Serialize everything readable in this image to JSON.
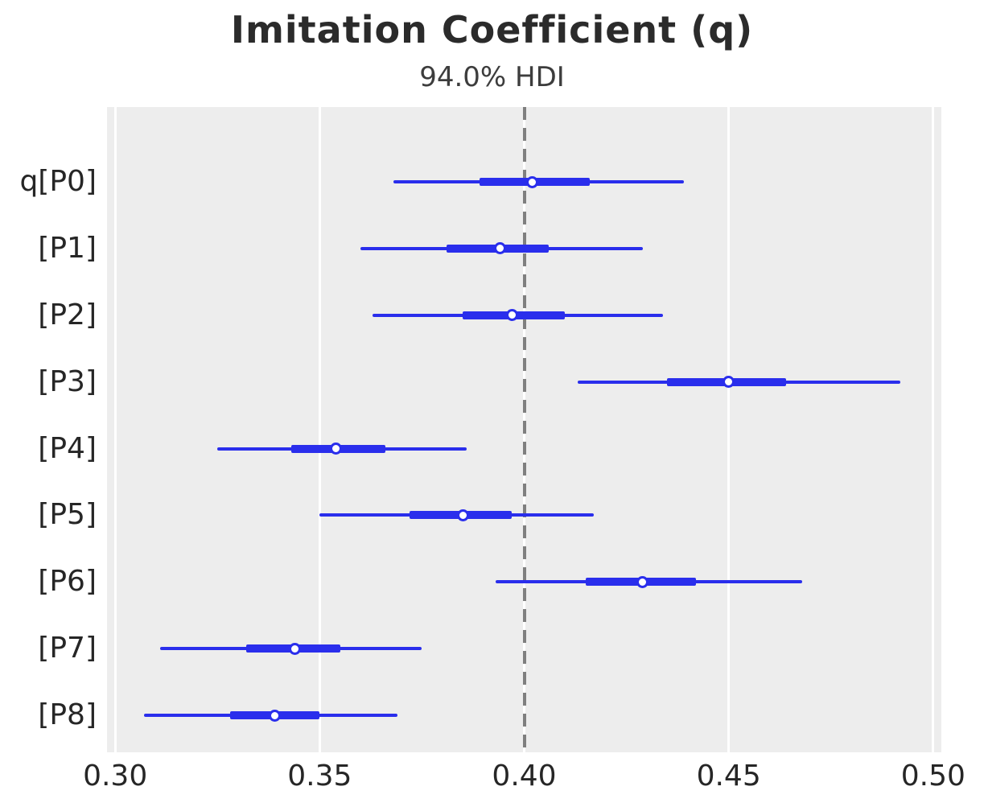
{
  "header": {
    "title": "Imitation Coefficient (q)",
    "subtitle": "94.0% HDI"
  },
  "chart_data": {
    "type": "forest",
    "title": "Imitation Coefficient (q)",
    "subtitle": "94.0% HDI",
    "hdi_probability": "94.0%",
    "xlim": [
      0.298,
      0.502
    ],
    "x_ticks": [
      0.3,
      0.35,
      0.4,
      0.45,
      0.5
    ],
    "x_tick_labels": [
      "0.30",
      "0.35",
      "0.40",
      "0.45",
      "0.50"
    ],
    "reference_line_x": 0.4,
    "grid": true,
    "legend_position": "none",
    "rows": [
      {
        "label": "q[P0]",
        "hdi_low": 0.368,
        "hdi_high": 0.439,
        "quartile_low": 0.389,
        "quartile_high": 0.416,
        "median": 0.402
      },
      {
        "label": "[P1]",
        "hdi_low": 0.36,
        "hdi_high": 0.429,
        "quartile_low": 0.381,
        "quartile_high": 0.406,
        "median": 0.394
      },
      {
        "label": "[P2]",
        "hdi_low": 0.363,
        "hdi_high": 0.434,
        "quartile_low": 0.385,
        "quartile_high": 0.41,
        "median": 0.397
      },
      {
        "label": "[P3]",
        "hdi_low": 0.413,
        "hdi_high": 0.492,
        "quartile_low": 0.435,
        "quartile_high": 0.464,
        "median": 0.45
      },
      {
        "label": "[P4]",
        "hdi_low": 0.325,
        "hdi_high": 0.386,
        "quartile_low": 0.343,
        "quartile_high": 0.366,
        "median": 0.354
      },
      {
        "label": "[P5]",
        "hdi_low": 0.35,
        "hdi_high": 0.417,
        "quartile_low": 0.372,
        "quartile_high": 0.397,
        "median": 0.385
      },
      {
        "label": "[P6]",
        "hdi_low": 0.393,
        "hdi_high": 0.468,
        "quartile_low": 0.415,
        "quartile_high": 0.442,
        "median": 0.429
      },
      {
        "label": "[P7]",
        "hdi_low": 0.311,
        "hdi_high": 0.375,
        "quartile_low": 0.332,
        "quartile_high": 0.355,
        "median": 0.344
      },
      {
        "label": "[P8]",
        "hdi_low": 0.307,
        "hdi_high": 0.369,
        "quartile_low": 0.328,
        "quartile_high": 0.35,
        "median": 0.339
      }
    ],
    "colors": {
      "interval": "#2a2eec",
      "marker_fill": "#ffffff",
      "plot_background": "#ededed",
      "gridline": "#ffffff",
      "reference_line": "#7f7f7f",
      "tick_text": "#262626",
      "title_text": "#2b2b2b"
    }
  }
}
